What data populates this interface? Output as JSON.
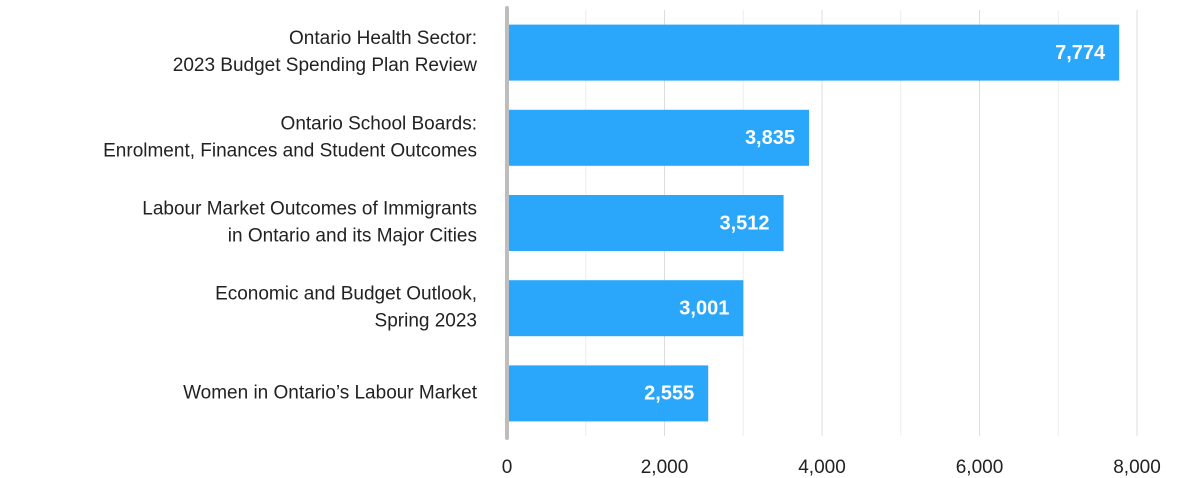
{
  "chart_data": {
    "type": "hbar",
    "categories": [
      [
        "Ontario Health Sector:",
        "2023 Budget Spending Plan Review"
      ],
      [
        "Ontario School Boards:",
        "Enrolment, Finances and Student Outcomes"
      ],
      [
        "Labour Market Outcomes of Immigrants",
        "in Ontario and its Major Cities"
      ],
      [
        "Economic and Budget Outlook,",
        "Spring 2023"
      ],
      [
        "Women in Ontario’s Labour Market"
      ]
    ],
    "values": [
      7774,
      3835,
      3512,
      3001,
      2555
    ],
    "value_labels": [
      "7,774",
      "3,835",
      "3,512",
      "3,001",
      "2,555"
    ],
    "color": "#2aa7fa",
    "xlim": [
      0,
      8000
    ],
    "xticks": [
      0,
      {
        "value": 2000,
        "label": "2,000"
      },
      {
        "value": 4000,
        "label": "4,000"
      },
      {
        "value": 6000,
        "label": "6,000"
      },
      {
        "value": 8000,
        "label": "8,000"
      }
    ],
    "minor_xticks": [
      1000,
      3000,
      5000,
      7000
    ],
    "grid": true
  }
}
